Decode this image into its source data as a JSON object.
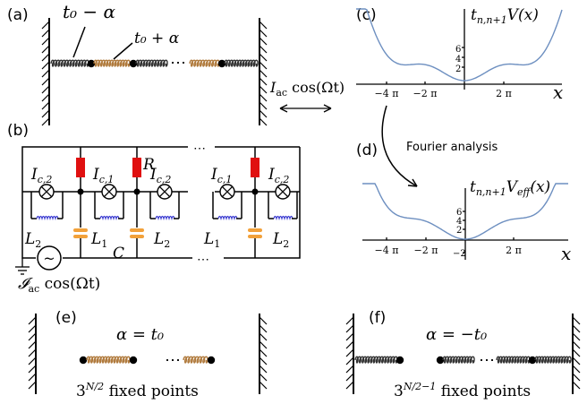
{
  "panels": {
    "a": {
      "label": "(a)",
      "spring_left_label": "t₀ − α",
      "spring_right_label": "t₀ + α",
      "dots": "⋯",
      "drive_label": "I",
      "drive_sub": "ac",
      "drive_tail": " cos(Ωt)"
    },
    "b": {
      "label": "(b)",
      "dots_top": "⋯",
      "dots_bottom": "⋯",
      "ic2_a": "I",
      "ic2_a_sub": "c,2",
      "ic1_a": "I",
      "ic1_a_sub": "c,1",
      "R": "R",
      "ic2_b": "I",
      "ic2_b_sub": "c,2",
      "ic1_b": "I",
      "ic1_b_sub": "c,1",
      "ic2_c": "I",
      "ic2_c_sub": "c,2",
      "L2_a": "L",
      "L2_a_sub": "2",
      "L1_a": "L",
      "L1_a_sub": "1",
      "C": "C",
      "L2_b": "L",
      "L2_b_sub": "2",
      "L1_b": "L",
      "L1_b_sub": "1",
      "L2_c": "L",
      "L2_c_sub": "2",
      "source_symbol": "~",
      "source_label": "𝓘",
      "source_sub": "ac",
      "source_tail": " cos(Ωt)"
    },
    "c": {
      "label": "(c)",
      "ylabel_main": "t",
      "ylabel_sub": "n,n+1",
      "ylabel_tail": "V(x)",
      "yticks": [
        "6",
        "4",
        "2"
      ],
      "xticks": [
        "−4 π",
        "−2 π",
        "2 π"
      ],
      "xaxis": "x"
    },
    "d": {
      "label": "(d)",
      "arrow_text": "Fourier analysis",
      "ylabel_main": "t",
      "ylabel_sub": "n,n+1",
      "ylabel_tail": "V",
      "ylabel_sub2": "eff",
      "ylabel_tail2": "(x)",
      "yticks": [
        "6",
        "4",
        "2",
        "−2"
      ],
      "xticks": [
        "−4 π",
        "−2 π",
        "2 π"
      ],
      "xaxis": "x"
    },
    "e": {
      "label": "(e)",
      "equation": "α = t₀",
      "dots": "⋯",
      "caption_base": "3",
      "caption_exp": "N/2",
      "caption_tail": " fixed points"
    },
    "f": {
      "label": "(f)",
      "equation": "α = −t₀",
      "dots": "⋯",
      "caption_base": "3",
      "caption_exp": "N/2−1",
      "caption_tail": " fixed points"
    }
  },
  "colors": {
    "curve": "#6d8fc0",
    "spring_dark": "#333333",
    "spring_tan": "#b07a3c",
    "resistor": "#e01010",
    "capacitor": "#f2a13a",
    "coil": "#3a3ad0"
  }
}
